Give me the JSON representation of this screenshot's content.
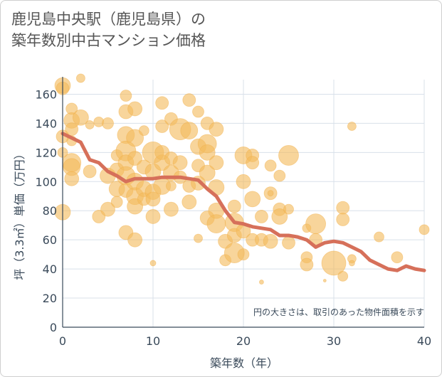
{
  "title": {
    "line1": "鹿児島中央駅（鹿児島県）の",
    "line2": "築年数別中古マンション価格"
  },
  "chart_data": {
    "type": "scatter",
    "xlabel": "築年数（年）",
    "ylabel": "坪（3.3㎡）単価（万円）",
    "xlim": [
      0,
      40
    ],
    "ylim": [
      0,
      170
    ],
    "xticks": [
      0,
      10,
      20,
      30,
      40
    ],
    "yticks": [
      0,
      20,
      40,
      60,
      80,
      100,
      120,
      140,
      160
    ],
    "grid": true,
    "note": "円の大きさは、取引のあった物件面積を示す",
    "colors": {
      "bubble": "#f3bc5e",
      "line": "#d6705a",
      "grid": "#d8e0ea",
      "axis": "#3a4a5a"
    },
    "points": [
      {
        "x": 0,
        "y": 166,
        "s": 11
      },
      {
        "x": 0,
        "y": 164,
        "s": 9
      },
      {
        "x": 0,
        "y": 79,
        "s": 11
      },
      {
        "x": 0,
        "y": 131,
        "s": 9
      },
      {
        "x": 0,
        "y": 120,
        "s": 7
      },
      {
        "x": 1,
        "y": 150,
        "s": 8
      },
      {
        "x": 1,
        "y": 142,
        "s": 11
      },
      {
        "x": 1,
        "y": 136,
        "s": 9
      },
      {
        "x": 1,
        "y": 113,
        "s": 13
      },
      {
        "x": 1,
        "y": 110,
        "s": 12
      },
      {
        "x": 1,
        "y": 102,
        "s": 10
      },
      {
        "x": 1,
        "y": 128,
        "s": 7
      },
      {
        "x": 2,
        "y": 171,
        "s": 6
      },
      {
        "x": 2,
        "y": 144,
        "s": 11
      },
      {
        "x": 3,
        "y": 107,
        "s": 9
      },
      {
        "x": 3,
        "y": 139,
        "s": 6
      },
      {
        "x": 4,
        "y": 76,
        "s": 9
      },
      {
        "x": 4,
        "y": 141,
        "s": 7
      },
      {
        "x": 5,
        "y": 81,
        "s": 10
      },
      {
        "x": 5,
        "y": 104,
        "s": 11
      },
      {
        "x": 5,
        "y": 140,
        "s": 8
      },
      {
        "x": 6,
        "y": 118,
        "s": 8
      },
      {
        "x": 6,
        "y": 108,
        "s": 10
      },
      {
        "x": 6,
        "y": 95,
        "s": 11
      },
      {
        "x": 6,
        "y": 86,
        "s": 8
      },
      {
        "x": 7,
        "y": 159,
        "s": 8
      },
      {
        "x": 7,
        "y": 148,
        "s": 10
      },
      {
        "x": 7,
        "y": 132,
        "s": 12
      },
      {
        "x": 7,
        "y": 121,
        "s": 14
      },
      {
        "x": 7,
        "y": 113,
        "s": 11
      },
      {
        "x": 7,
        "y": 104,
        "s": 13
      },
      {
        "x": 7,
        "y": 94,
        "s": 10
      },
      {
        "x": 7,
        "y": 65,
        "s": 10
      },
      {
        "x": 8,
        "y": 150,
        "s": 10
      },
      {
        "x": 8,
        "y": 130,
        "s": 12
      },
      {
        "x": 8,
        "y": 116,
        "s": 10
      },
      {
        "x": 8,
        "y": 100,
        "s": 12
      },
      {
        "x": 8,
        "y": 90,
        "s": 12
      },
      {
        "x": 8,
        "y": 83,
        "s": 11
      },
      {
        "x": 8,
        "y": 60,
        "s": 10
      },
      {
        "x": 9,
        "y": 135,
        "s": 7
      },
      {
        "x": 9,
        "y": 110,
        "s": 10
      },
      {
        "x": 9,
        "y": 95,
        "s": 11
      },
      {
        "x": 9,
        "y": 88,
        "s": 9
      },
      {
        "x": 10,
        "y": 120,
        "s": 15
      },
      {
        "x": 10,
        "y": 107,
        "s": 11
      },
      {
        "x": 10,
        "y": 93,
        "s": 11
      },
      {
        "x": 10,
        "y": 88,
        "s": 10
      },
      {
        "x": 10,
        "y": 76,
        "s": 10
      },
      {
        "x": 10,
        "y": 44,
        "s": 4
      },
      {
        "x": 11,
        "y": 154,
        "s": 9
      },
      {
        "x": 11,
        "y": 138,
        "s": 9
      },
      {
        "x": 11,
        "y": 113,
        "s": 11
      },
      {
        "x": 11,
        "y": 97,
        "s": 12
      },
      {
        "x": 11,
        "y": 120,
        "s": 10
      },
      {
        "x": 12,
        "y": 143,
        "s": 9
      },
      {
        "x": 12,
        "y": 116,
        "s": 9
      },
      {
        "x": 12,
        "y": 106,
        "s": 11
      },
      {
        "x": 12,
        "y": 81,
        "s": 10
      },
      {
        "x": 12,
        "y": 97,
        "s": 7
      },
      {
        "x": 13,
        "y": 136,
        "s": 15
      },
      {
        "x": 13,
        "y": 113,
        "s": 10
      },
      {
        "x": 13,
        "y": 103,
        "s": 9
      },
      {
        "x": 14,
        "y": 156,
        "s": 9
      },
      {
        "x": 14,
        "y": 135,
        "s": 12
      },
      {
        "x": 14,
        "y": 97,
        "s": 9
      },
      {
        "x": 14,
        "y": 86,
        "s": 10
      },
      {
        "x": 15,
        "y": 148,
        "s": 8
      },
      {
        "x": 15,
        "y": 124,
        "s": 11
      },
      {
        "x": 15,
        "y": 111,
        "s": 9
      },
      {
        "x": 15,
        "y": 99,
        "s": 10
      },
      {
        "x": 15,
        "y": 61,
        "s": 6
      },
      {
        "x": 16,
        "y": 140,
        "s": 9
      },
      {
        "x": 16,
        "y": 126,
        "s": 13
      },
      {
        "x": 16,
        "y": 120,
        "s": 11
      },
      {
        "x": 16,
        "y": 106,
        "s": 11
      },
      {
        "x": 16,
        "y": 75,
        "s": 10
      },
      {
        "x": 17,
        "y": 136,
        "s": 10
      },
      {
        "x": 17,
        "y": 113,
        "s": 10
      },
      {
        "x": 17,
        "y": 96,
        "s": 11
      },
      {
        "x": 17,
        "y": 80,
        "s": 11
      },
      {
        "x": 17,
        "y": 71,
        "s": 13
      },
      {
        "x": 18,
        "y": 59,
        "s": 10
      },
      {
        "x": 18,
        "y": 46,
        "s": 8
      },
      {
        "x": 19,
        "y": 83,
        "s": 9
      },
      {
        "x": 19,
        "y": 72,
        "s": 13
      },
      {
        "x": 19,
        "y": 63,
        "s": 10
      },
      {
        "x": 19,
        "y": 51,
        "s": 14
      },
      {
        "x": 20,
        "y": 118,
        "s": 12
      },
      {
        "x": 20,
        "y": 100,
        "s": 10
      },
      {
        "x": 20,
        "y": 66,
        "s": 10
      },
      {
        "x": 20,
        "y": 50,
        "s": 8
      },
      {
        "x": 21,
        "y": 118,
        "s": 9
      },
      {
        "x": 21,
        "y": 113,
        "s": 9
      },
      {
        "x": 21,
        "y": 88,
        "s": 11
      },
      {
        "x": 21,
        "y": 60,
        "s": 9
      },
      {
        "x": 22,
        "y": 76,
        "s": 9
      },
      {
        "x": 22,
        "y": 60,
        "s": 9
      },
      {
        "x": 22,
        "y": 31,
        "s": 3
      },
      {
        "x": 23,
        "y": 111,
        "s": 8
      },
      {
        "x": 23,
        "y": 92,
        "s": 9
      },
      {
        "x": 23,
        "y": 59,
        "s": 10
      },
      {
        "x": 23,
        "y": 92,
        "s": 4
      },
      {
        "x": 24,
        "y": 104,
        "s": 8
      },
      {
        "x": 24,
        "y": 81,
        "s": 9
      },
      {
        "x": 24,
        "y": 76,
        "s": 11
      },
      {
        "x": 25,
        "y": 118,
        "s": 14
      },
      {
        "x": 25,
        "y": 81,
        "s": 7
      },
      {
        "x": 25,
        "y": 58,
        "s": 9
      },
      {
        "x": 27,
        "y": 68,
        "s": 6
      },
      {
        "x": 27,
        "y": 48,
        "s": 8
      },
      {
        "x": 27,
        "y": 43,
        "s": 9
      },
      {
        "x": 28,
        "y": 71,
        "s": 14
      },
      {
        "x": 28,
        "y": 60,
        "s": 9
      },
      {
        "x": 29,
        "y": 32,
        "s": 2
      },
      {
        "x": 30,
        "y": 44,
        "s": 17
      },
      {
        "x": 31,
        "y": 82,
        "s": 9
      },
      {
        "x": 31,
        "y": 74,
        "s": 9
      },
      {
        "x": 31,
        "y": 35,
        "s": 7
      },
      {
        "x": 32,
        "y": 138,
        "s": 6
      },
      {
        "x": 32,
        "y": 47,
        "s": 6
      },
      {
        "x": 32,
        "y": 44,
        "s": 4
      },
      {
        "x": 35,
        "y": 62,
        "s": 7
      },
      {
        "x": 37,
        "y": 48,
        "s": 8
      },
      {
        "x": 40,
        "y": 67,
        "s": 7
      }
    ],
    "series": [
      {
        "x": [
          0,
          1,
          2,
          3,
          4,
          5,
          6,
          7,
          8,
          9,
          10,
          11,
          12,
          13,
          14,
          15,
          16,
          17,
          18,
          19,
          20,
          21,
          22,
          23,
          24,
          25,
          26,
          27,
          28,
          29,
          30,
          31,
          32,
          33,
          34,
          35,
          36,
          37,
          38,
          39,
          40
        ],
        "values": [
          133,
          130,
          127,
          115,
          113,
          107,
          104,
          100,
          102,
          102,
          102,
          103,
          103,
          103,
          102,
          101,
          95,
          90,
          80,
          72,
          71,
          69,
          68,
          67,
          63,
          63,
          62,
          60,
          55,
          58,
          59,
          58,
          55,
          52,
          46,
          43,
          40,
          39,
          42,
          40,
          39
        ]
      }
    ]
  }
}
